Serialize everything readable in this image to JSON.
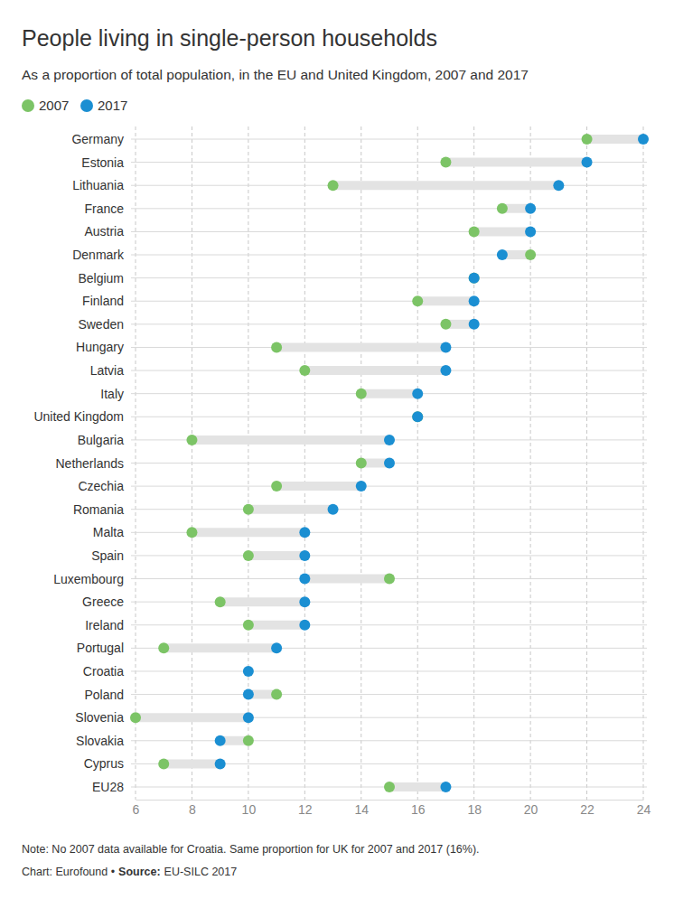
{
  "chart_data": {
    "type": "dumbbell",
    "title": "People living in single-person households",
    "subtitle": "As a proportion of total population, in the EU and United Kingdom, 2007 and 2017",
    "orientation": "horizontal",
    "grid": true,
    "legend": "top-left",
    "categories": [
      "Germany",
      "Estonia",
      "Lithuania",
      "France",
      "Austria",
      "Denmark",
      "Belgium",
      "Finland",
      "Sweden",
      "Hungary",
      "Latvia",
      "Italy",
      "United Kingdom",
      "Bulgaria",
      "Netherlands",
      "Czechia",
      "Romania",
      "Malta",
      "Spain",
      "Luxembourg",
      "Greece",
      "Ireland",
      "Portugal",
      "Croatia",
      "Poland",
      "Slovenia",
      "Slovakia",
      "Cyprus",
      "EU28"
    ],
    "series": [
      {
        "name": "2007",
        "color": "#7cc466",
        "marker": "circle",
        "values": [
          22,
          17,
          13,
          19,
          18,
          20,
          18,
          16,
          17,
          11,
          12,
          14,
          16,
          8,
          14,
          11,
          10,
          8,
          10,
          15,
          9,
          10,
          7,
          null,
          11,
          6,
          10,
          7,
          15
        ]
      },
      {
        "name": "2017",
        "color": "#1b8fd2",
        "marker": "circle",
        "values": [
          24,
          22,
          21,
          20,
          20,
          19,
          18,
          18,
          18,
          17,
          17,
          16,
          16,
          15,
          15,
          14,
          13,
          12,
          12,
          12,
          12,
          12,
          11,
          10,
          10,
          10,
          9,
          9,
          17
        ]
      }
    ],
    "xlim": [
      6,
      24
    ],
    "xticks": [
      6,
      8,
      10,
      12,
      14,
      16,
      18,
      20,
      22,
      24
    ],
    "note": "Note: No 2007 data available for Croatia. Same proportion for UK for 2007 and 2017 (16%).",
    "credit": "Chart: Eurofound •",
    "source_label": "Source:",
    "source": "EU-SILC 2017"
  }
}
